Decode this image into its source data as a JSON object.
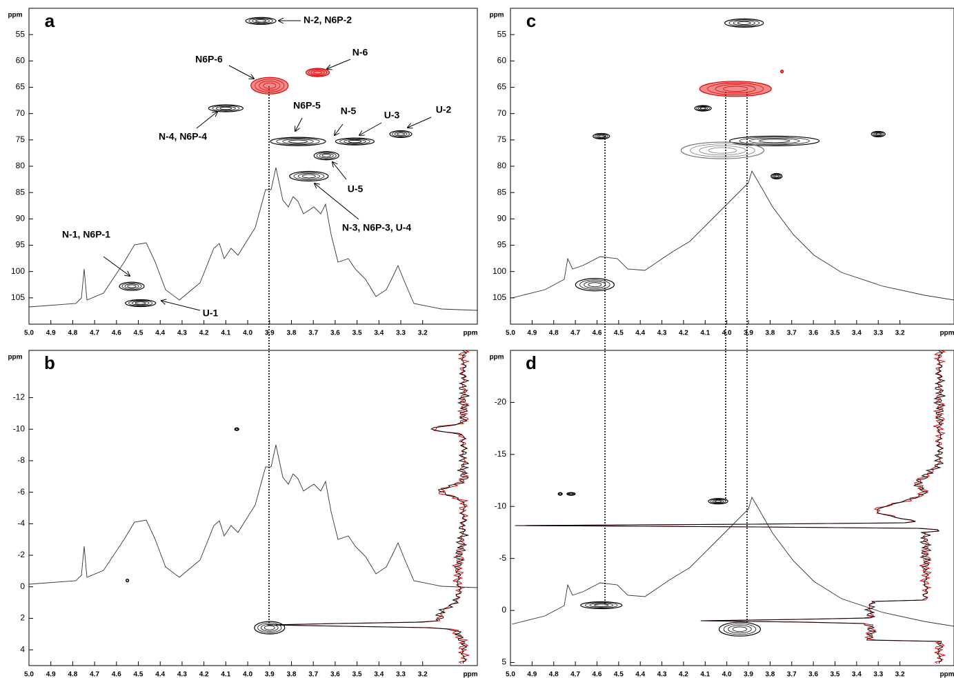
{
  "chart_data": [
    {
      "type": "contour",
      "label": "a",
      "xlabel": "ppm",
      "ylabel": "ppm",
      "xlim": [
        5.0,
        2.95
      ],
      "ylim": [
        50,
        110
      ],
      "xticks": [
        {
          "value": 5.0,
          "label": "5.0"
        },
        4.9,
        4.8,
        4.7,
        4.6,
        4.5,
        4.4,
        4.3,
        4.2,
        4.1,
        {
          "value": 4.0,
          "label": "4.0"
        },
        3.9,
        3.8,
        3.7,
        3.6,
        3.5,
        3.4,
        3.3,
        3.2
      ],
      "yticks": [
        55,
        60,
        65,
        70,
        75,
        80,
        85,
        90,
        95,
        100,
        105
      ],
      "series": [
        {
          "color": "#000000",
          "x": [
            3.94,
            4.1,
            3.77,
            3.51,
            3.3,
            3.64,
            3.72,
            4.53,
            4.49
          ],
          "y": [
            52.4,
            69,
            75.3,
            75.3,
            73.9,
            78,
            81.9,
            102.8,
            106
          ]
        },
        {
          "color": "#e00000",
          "x": [
            3.9,
            3.68
          ],
          "y": [
            64.7,
            62.2
          ]
        }
      ],
      "annotations": [
        "N-2, N6P-2",
        "N6P-6",
        "N-6",
        "N6P-5",
        "N-5",
        "U-3",
        "U-2",
        "N-4, N6P-4",
        "U-5",
        "N-3, N6P-3, U-4",
        "N-1, N6P-1",
        "U-1"
      ]
    },
    {
      "type": "contour",
      "label": "b",
      "xlabel": "ppm",
      "ylabel": "ppm",
      "xlim": [
        5.0,
        2.95
      ],
      "ylim": [
        -15,
        5
      ],
      "xticks": [
        {
          "value": 5.0,
          "label": "5.0"
        },
        4.9,
        4.8,
        4.7,
        4.6,
        4.5,
        4.4,
        4.3,
        4.2,
        4.1,
        {
          "value": 4.0,
          "label": "4.0"
        },
        3.9,
        3.8,
        3.7,
        3.6,
        3.5,
        3.4,
        3.3,
        3.2
      ],
      "yticks": [
        -12,
        -10,
        -8,
        -6,
        -4,
        -2,
        0,
        2,
        4
      ],
      "series": [
        {
          "color": "#000000",
          "x": [
            3.9,
            4.05,
            4.55
          ],
          "y": [
            2.6,
            -10,
            -0.4
          ]
        }
      ]
    },
    {
      "type": "contour",
      "label": "c",
      "xlabel": "ppm",
      "ylabel": "ppm",
      "xlim": [
        5.0,
        2.95
      ],
      "ylim": [
        50,
        110
      ],
      "xticks": [
        {
          "value": 5.0,
          "label": "5.0"
        },
        4.9,
        4.8,
        4.7,
        4.6,
        4.5,
        4.4,
        4.3,
        4.2,
        4.1,
        {
          "value": 4.0,
          "label": "4.0"
        },
        3.9,
        3.8,
        3.7,
        3.6,
        3.5,
        3.4,
        3.3,
        3.2
      ],
      "yticks": [
        55,
        60,
        65,
        70,
        75,
        80,
        85,
        90,
        95,
        100,
        105
      ],
      "series": [
        {
          "color": "#000000",
          "x": [
            3.92,
            4.11,
            4.58,
            3.78,
            3.3,
            3.77,
            4.61
          ],
          "y": [
            52.8,
            69,
            74.3,
            75.2,
            73.9,
            81.9,
            102.5
          ]
        },
        {
          "color": "#777777",
          "x": [
            4.02
          ],
          "y": [
            77
          ]
        },
        {
          "color": "#e00000",
          "x": [
            3.96,
            3.745
          ],
          "y": [
            65.3,
            62
          ]
        }
      ]
    },
    {
      "type": "contour",
      "label": "d",
      "xlabel": "ppm",
      "ylabel": "ppm",
      "xlim": [
        5.0,
        2.95
      ],
      "ylim": [
        -25,
        5.3
      ],
      "xticks": [
        {
          "value": 5.0,
          "label": "5.0"
        },
        4.9,
        4.8,
        4.7,
        4.6,
        4.5,
        4.4,
        4.3,
        4.2,
        4.1,
        {
          "value": 4.0,
          "label": "4.0"
        },
        3.9,
        3.8,
        3.7,
        3.6,
        3.5,
        3.4,
        3.3,
        3.2
      ],
      "yticks": [
        -20,
        -15,
        -10,
        -5,
        0,
        5
      ],
      "series": [
        {
          "color": "#000000",
          "x": [
            4.04,
            4.58,
            3.94,
            4.72,
            4.77
          ],
          "y": [
            -10.5,
            -0.5,
            1.8,
            -11.2,
            -11.2
          ]
        }
      ]
    }
  ]
}
